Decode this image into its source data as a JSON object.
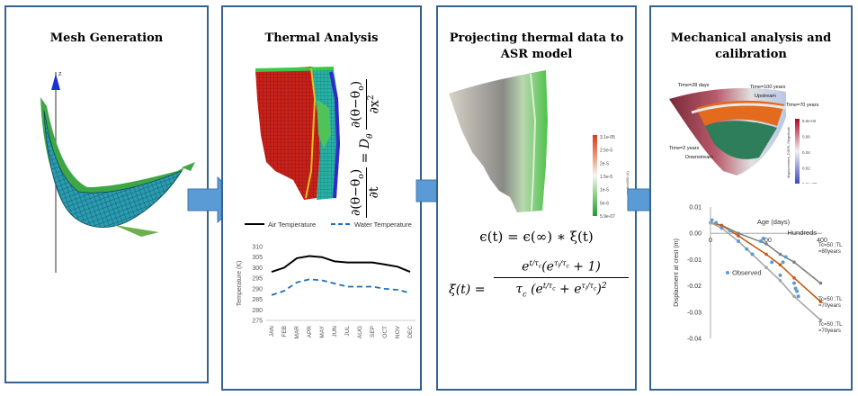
{
  "colors": {
    "border": "#35628f",
    "arrow": "#5b9bd5",
    "arrow_edge": "#3f74a8"
  },
  "panel1": {
    "title": "Mesh Generation",
    "axis_label": "z"
  },
  "panel2": {
    "title": "Thermal Analysis",
    "eq_lhs_num": "∂(θ−θ",
    "eq_lhs_sub": "o",
    "eq_lhs_close": ")",
    "eq_lhs_den": "∂t",
    "eq_eq": "= D",
    "eq_d_sub": "θ",
    "eq_rhs_num": "∂(θ−θ",
    "eq_rhs_den": "∂x",
    "eq_rhs_pow": "2"
  },
  "panel3": {
    "title_line1": "Projecting thermal data to",
    "title_line2": "ASR model",
    "colorbar_label": "epsilon000 (X)",
    "colorbar_ticks": [
      "3.1e-05",
      "2.5e-5",
      "2e-5",
      "1.5e-5",
      "1e-5",
      "5e-6",
      "5.9e-07"
    ],
    "eq1": "ϵ(t) = ϵ(∞) ∗ ξ(t)",
    "eq2_lhs": "ξ̇(t) =",
    "eq2_num": "e^(t/τc)(e^(τl/τc) + 1)",
    "eq2_den": "τc (e^(t/τc) + e^(τl/τc))²",
    "eq2_frac_num_e": "e",
    "eq2_t": "t",
    "eq2_tc": "τ",
    "eq2_c": "c",
    "eq2_tl": "τ",
    "eq2_l": "l",
    "eq2_plus1": "+ 1)",
    "eq2_open": "(e",
    "eq2_plus": "+ e",
    "eq2_sq": "2"
  },
  "panel4": {
    "title_line1": "Mechanical analysis and",
    "title_line2": "calibration",
    "render_labels": [
      "Time=28 days",
      "Time=100 years",
      "Upstream",
      "Time=70 years",
      "Time=2 years",
      "Downstream"
    ],
    "render_colorbar_ticks": [
      "8.0e-02",
      "0.06",
      "0.04",
      "0.02",
      "0.0e+00"
    ],
    "render_colorbar_label": "displacement_DISPL Magnitude"
  },
  "chart_data": [
    {
      "type": "line",
      "title": "",
      "xlabel": "",
      "ylabel": "Temperature (K)",
      "categories": [
        "JAN",
        "FEB",
        "MAR",
        "APR",
        "MAY",
        "JUN",
        "JUL",
        "AUG",
        "SEP",
        "OCT",
        "NOV",
        "DEC"
      ],
      "ylim": [
        275,
        310
      ],
      "yticks": [
        275,
        280,
        285,
        290,
        295,
        300,
        305,
        310
      ],
      "legend_position": "top",
      "series": [
        {
          "name": "Air Temperature",
          "color": "#000000",
          "style": "solid",
          "values": [
            298,
            300,
            304.5,
            305.5,
            305,
            303,
            302.5,
            302.5,
            302.5,
            301.5,
            300.5,
            298
          ]
        },
        {
          "name": "Water Temperature",
          "color": "#1f6fb5",
          "style": "dashed",
          "values": [
            287,
            289,
            293,
            294.5,
            294,
            292.5,
            291,
            291,
            291,
            290,
            289.5,
            288
          ]
        }
      ]
    },
    {
      "type": "scatter",
      "title": "",
      "xlabel": "Age (days)",
      "xlabel_secondary": "Hundreds",
      "ylabel": "Displacment at crest (m)",
      "xlim": [
        0,
        400
      ],
      "ylim": [
        -0.04,
        0.01
      ],
      "xticks": [
        0,
        200,
        400
      ],
      "xtick_labels": [
        "0",
        "200",
        "400"
      ],
      "yticks": [
        0.01,
        0,
        -0.01,
        -0.02,
        -0.03,
        -0.04
      ],
      "ytick_labels": [
        "0.01",
        "0.00",
        "-0.01",
        "-0.02",
        "-0.03",
        "-0.04"
      ],
      "grid": false,
      "series": [
        {
          "name": "Observed",
          "kind": "points",
          "color": "#5b9bd5",
          "x": [
            5,
            20,
            40,
            70,
            100,
            130,
            150,
            180,
            190,
            220,
            250,
            260,
            270,
            300,
            305,
            310,
            315
          ],
          "y": [
            0.005,
            0.004,
            0.002,
            0.001,
            -0.003,
            -0.006,
            -0.008,
            -0.003,
            -0.002,
            -0.011,
            -0.016,
            -0.011,
            -0.009,
            -0.019,
            -0.021,
            -0.022,
            -0.024
          ]
        },
        {
          "name": "Tc=50 ;TL =80years",
          "kind": "line",
          "color": "#7f7f7f",
          "x": [
            0,
            40,
            100,
            200,
            250,
            300,
            395
          ],
          "y": [
            0.004,
            0.003,
            0.0,
            -0.004,
            -0.008,
            -0.011,
            -0.019
          ]
        },
        {
          "name": "Tc=50 ;TL =70years",
          "kind": "line",
          "color": "#c55a11",
          "x": [
            0,
            40,
            100,
            200,
            250,
            300,
            395
          ],
          "y": [
            0.004,
            0.003,
            -0.001,
            -0.008,
            -0.012,
            -0.017,
            -0.026
          ]
        },
        {
          "name": "Tc=50 ;TL =70years",
          "kind": "line",
          "color": "#a6a6a6",
          "x": [
            0,
            40,
            100,
            200,
            250,
            300,
            395
          ],
          "y": [
            0.004,
            0.002,
            -0.003,
            -0.013,
            -0.018,
            -0.024,
            -0.033
          ]
        }
      ],
      "annotations": [
        {
          "text_line1": "Tc=50 ;TL",
          "text_line2": "=80years"
        },
        {
          "text_line1": "Tc=50 ;TL",
          "text_line2": "=70years"
        },
        {
          "text_line1": "Tc=50 ;TL",
          "text_line2": "=70years"
        }
      ]
    }
  ]
}
